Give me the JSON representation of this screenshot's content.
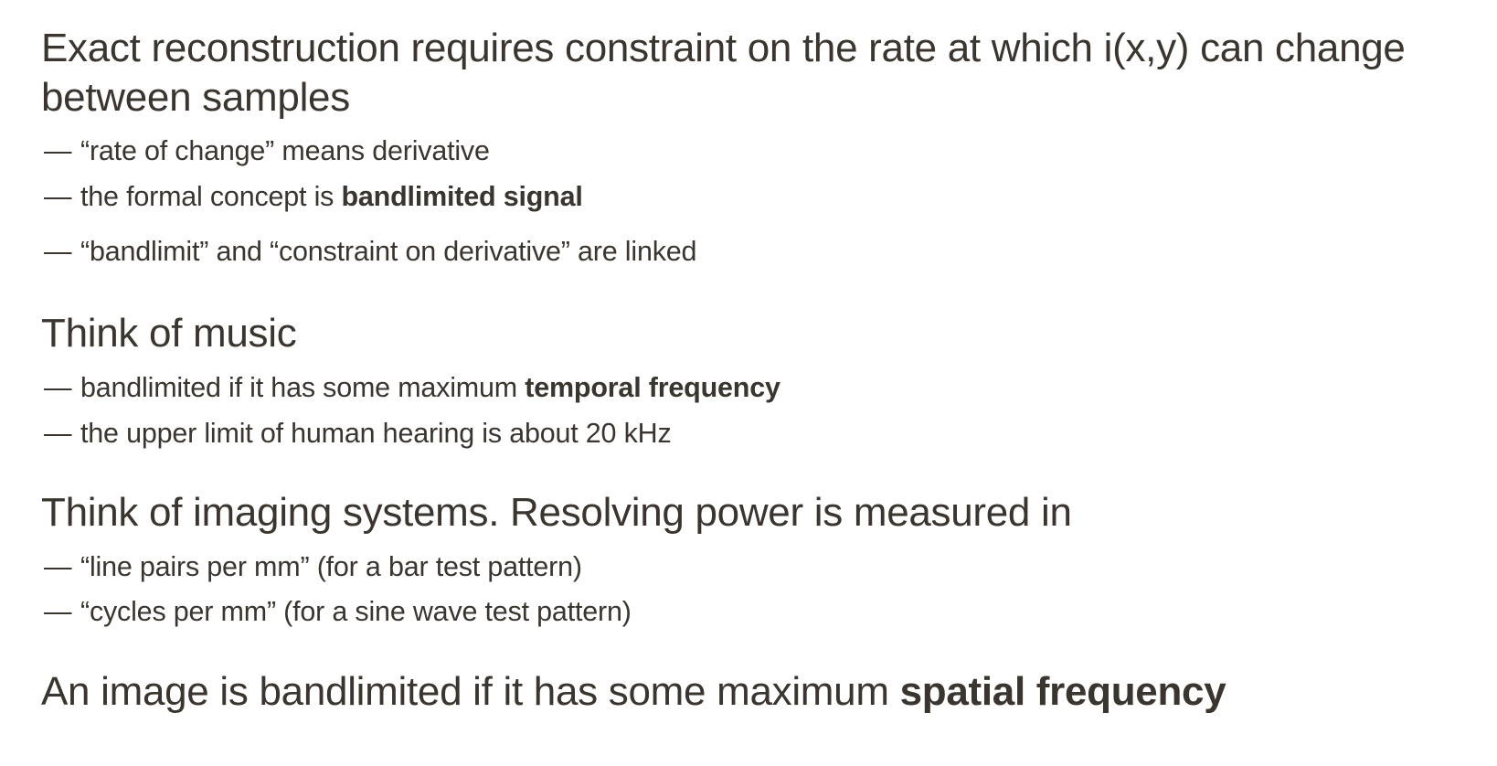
{
  "sections": [
    {
      "heading_lines": [
        "Exact reconstruction requires constraint on the rate at which i(x,y) can change",
        "between samples"
      ],
      "bullets": [
        {
          "dash": "—",
          "text": "“rate of change” means derivative",
          "bold": ""
        },
        {
          "dash": "—",
          "text": "the formal concept is ",
          "bold": "bandlimited signal"
        },
        {
          "dash": "—",
          "text": "“bandlimit” and “constraint on derivative” are linked",
          "bold": ""
        }
      ]
    },
    {
      "heading_lines": [
        "Think of music"
      ],
      "bullets": [
        {
          "dash": "—",
          "text": "bandlimited if it has some maximum ",
          "bold": "temporal frequency"
        },
        {
          "dash": "—",
          "text": "the upper limit of human hearing is about 20 kHz",
          "bold": ""
        }
      ]
    },
    {
      "heading_lines": [
        "Think of imaging systems. Resolving power is measured in"
      ],
      "bullets": [
        {
          "dash": "—",
          "text": "“line pairs per mm” (for a bar test pattern)",
          "bold": ""
        },
        {
          "dash": "—",
          "text": "“cycles per mm” (for a sine wave test pattern)",
          "bold": ""
        }
      ]
    },
    {
      "heading_lines": [
        "An image is bandlimited if it has some maximum "
      ],
      "heading_bold": "spatial frequency",
      "bullets": []
    }
  ]
}
